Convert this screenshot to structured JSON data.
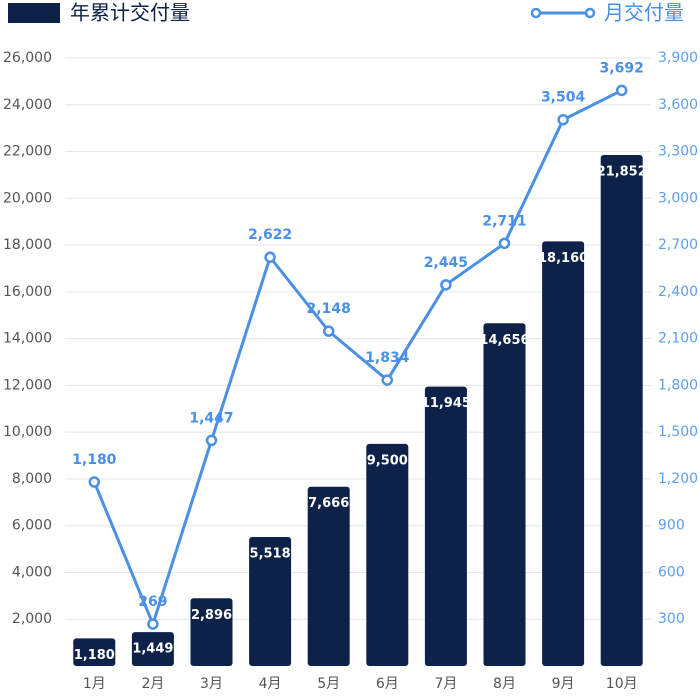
{
  "chart_data": {
    "type": "bar-line",
    "categories": [
      "1月",
      "2月",
      "3月",
      "4月",
      "5月",
      "6月",
      "7月",
      "8月",
      "9月",
      "10月"
    ],
    "series": [
      {
        "name": "年累计交付量",
        "type": "bar",
        "color": "#0d2149",
        "values": [
          1180,
          1449,
          2896,
          5518,
          7666,
          9500,
          11945,
          14656,
          18160,
          21852
        ],
        "value_labels": [
          "1,180",
          "1,449",
          "2,896",
          "5,518",
          "7,666",
          "9,500",
          "11,945",
          "14,656",
          "18,160",
          "21,852"
        ]
      },
      {
        "name": "月交付量",
        "type": "line",
        "axis": "y2",
        "color": "#4a90e6",
        "values": [
          1180,
          269,
          1447,
          2622,
          2148,
          1834,
          2445,
          2711,
          3504,
          3692
        ],
        "value_labels": [
          "1,180",
          "269",
          "1,447",
          "2,622",
          "2,148",
          "1,834",
          "2,445",
          "2,711",
          "3,504",
          "3,692"
        ]
      }
    ],
    "ylim": [
      0,
      26000
    ],
    "yticks": [
      {
        "value": 2000,
        "label": "2,000"
      },
      {
        "value": 4000,
        "label": "4,000"
      },
      {
        "value": 6000,
        "label": "6,000"
      },
      {
        "value": 8000,
        "label": "8,000"
      },
      {
        "value": 10000,
        "label": "10,000"
      },
      {
        "value": 12000,
        "label": "12,000"
      },
      {
        "value": 14000,
        "label": "14,000"
      },
      {
        "value": 16000,
        "label": "16,000"
      },
      {
        "value": 18000,
        "label": "18,000"
      },
      {
        "value": 20000,
        "label": "20,000"
      },
      {
        "value": 22000,
        "label": "22,000"
      },
      {
        "value": 24000,
        "label": "24,000"
      },
      {
        "value": 26000,
        "label": "26,000"
      }
    ],
    "y2lim": [
      0,
      3900
    ],
    "y2ticks": [
      300,
      600,
      900,
      {
        "value": 1200,
        "label": "1,200"
      },
      {
        "value": 1500,
        "label": "1,500"
      },
      {
        "value": 1800,
        "label": "1,800"
      },
      {
        "value": 2100,
        "label": "2,100"
      },
      {
        "value": 2400,
        "label": "2,400"
      },
      {
        "value": 2700,
        "label": "2,700"
      },
      {
        "value": 3000,
        "label": "3,000"
      },
      {
        "value": 3300,
        "label": "3,300"
      },
      {
        "value": 3600,
        "label": "3,600"
      },
      {
        "value": 3900,
        "label": "3,900"
      }
    ],
    "grid": true
  }
}
